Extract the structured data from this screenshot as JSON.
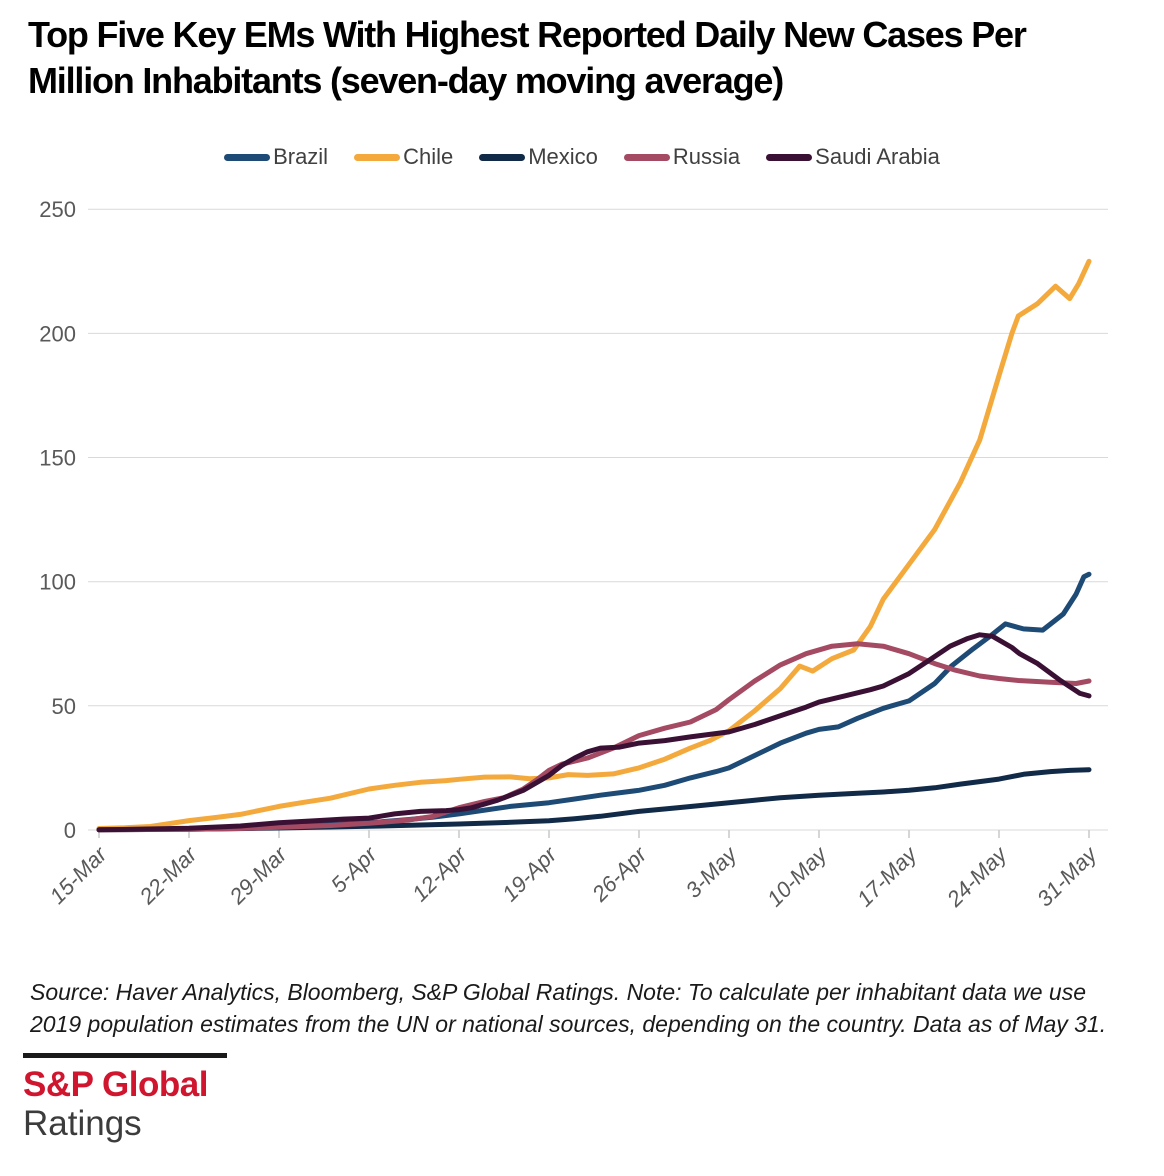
{
  "title": {
    "full": "Top Five Key EMs With Highest Reported Daily New Cases Per Million Inhabitants (seven-day moving average)",
    "line1": "Top Five Key EMs With Highest Reported Daily New Cases Per",
    "line2": "Million Inhabitants (seven-day moving average)"
  },
  "footer": {
    "line1": "Source: Haver Analytics, Bloomberg, S&P Global Ratings. Note: To calculate per inhabitant data we  use",
    "line2": "2019 population  estimates from the UN or national sources, depending on the country. Data as of May 31."
  },
  "logo": {
    "brand": "S&P Global",
    "division": "Ratings",
    "brand_color": "#d0152f"
  },
  "chart_data": {
    "type": "line",
    "title": "Top Five Key EMs With Highest Reported Daily New Cases Per Million Inhabitants (seven-day moving average)",
    "xlabel": "",
    "ylabel": "",
    "ylim": [
      0,
      250
    ],
    "yticks": [
      0,
      50,
      100,
      150,
      200,
      250
    ],
    "grid": "horizontal",
    "legend_position": "top-center",
    "x_start_date": "15-Mar",
    "x_end_date": "31-May",
    "x_tick_labels": [
      "15-Mar",
      "22-Mar",
      "29-Mar",
      "5-Apr",
      "12-Apr",
      "19-Apr",
      "26-Apr",
      "3-May",
      "10-May",
      "17-May",
      "24-May",
      "31-May"
    ],
    "x_tick_days": [
      0,
      7,
      14,
      21,
      28,
      35,
      42,
      49,
      56,
      63,
      70,
      77
    ],
    "axis_text_color": "#595959",
    "grid_color": "#d9d9d9",
    "series": [
      {
        "name": "Brazil",
        "color": "#1e4a76",
        "points": [
          [
            0,
            0.2
          ],
          [
            4,
            0.4
          ],
          [
            7,
            0.6
          ],
          [
            11,
            1
          ],
          [
            14,
            1.4
          ],
          [
            18,
            2.2
          ],
          [
            21,
            2.9
          ],
          [
            24,
            4.2
          ],
          [
            26,
            5.2
          ],
          [
            28,
            6.5
          ],
          [
            30,
            8
          ],
          [
            32,
            9.5
          ],
          [
            35,
            11
          ],
          [
            37,
            12.5
          ],
          [
            39,
            14
          ],
          [
            42,
            16
          ],
          [
            44,
            18
          ],
          [
            46,
            21
          ],
          [
            48,
            23.5
          ],
          [
            49,
            25
          ],
          [
            51,
            30
          ],
          [
            53,
            35
          ],
          [
            55,
            39
          ],
          [
            56,
            40.5
          ],
          [
            57.5,
            41.5
          ],
          [
            59,
            45
          ],
          [
            61,
            49
          ],
          [
            63,
            52
          ],
          [
            65,
            59
          ],
          [
            66.3,
            66
          ],
          [
            68,
            73
          ],
          [
            69.3,
            78
          ],
          [
            70.5,
            83
          ],
          [
            71.9,
            81
          ],
          [
            73.4,
            80.5
          ],
          [
            75,
            87
          ],
          [
            76,
            95
          ],
          [
            76.6,
            102
          ],
          [
            77,
            103
          ]
        ]
      },
      {
        "name": "Chile",
        "color": "#f4a93c",
        "points": [
          [
            0,
            0.6
          ],
          [
            2,
            0.9
          ],
          [
            4,
            1.4
          ],
          [
            7,
            3.8
          ],
          [
            9,
            5
          ],
          [
            11,
            6.3
          ],
          [
            14,
            9.5
          ],
          [
            16,
            11.2
          ],
          [
            18,
            12.8
          ],
          [
            21,
            16.5
          ],
          [
            23,
            18
          ],
          [
            25,
            19.2
          ],
          [
            27,
            19.9
          ],
          [
            28,
            20.4
          ],
          [
            30,
            21.3
          ],
          [
            32,
            21.4
          ],
          [
            33.5,
            20.6
          ],
          [
            35,
            21
          ],
          [
            36.5,
            22.3
          ],
          [
            38,
            22
          ],
          [
            40,
            22.6
          ],
          [
            42,
            25
          ],
          [
            44,
            28.5
          ],
          [
            46,
            33
          ],
          [
            47.5,
            36
          ],
          [
            49,
            40
          ],
          [
            51,
            48
          ],
          [
            53,
            57
          ],
          [
            54.5,
            66
          ],
          [
            55.5,
            64
          ],
          [
            57,
            69
          ],
          [
            58.7,
            72.5
          ],
          [
            60,
            82
          ],
          [
            61,
            93
          ],
          [
            63,
            107
          ],
          [
            65,
            121
          ],
          [
            67,
            140
          ],
          [
            68.5,
            157
          ],
          [
            70,
            183
          ],
          [
            71,
            200
          ],
          [
            71.5,
            207
          ],
          [
            73,
            212
          ],
          [
            74.4,
            219
          ],
          [
            75.5,
            214
          ],
          [
            76.2,
            220
          ],
          [
            77,
            229
          ]
        ]
      },
      {
        "name": "Mexico",
        "color": "#112a47",
        "points": [
          [
            0,
            0.1
          ],
          [
            7,
            0.3
          ],
          [
            14,
            0.8
          ],
          [
            18,
            1.2
          ],
          [
            21,
            1.5
          ],
          [
            25,
            2
          ],
          [
            28,
            2.4
          ],
          [
            31,
            2.9
          ],
          [
            33,
            3.3
          ],
          [
            35,
            3.7
          ],
          [
            37,
            4.5
          ],
          [
            39,
            5.5
          ],
          [
            42,
            7.5
          ],
          [
            45,
            9
          ],
          [
            47,
            10
          ],
          [
            49,
            11
          ],
          [
            51,
            12
          ],
          [
            53,
            13
          ],
          [
            56,
            14
          ],
          [
            59,
            14.8
          ],
          [
            61,
            15.3
          ],
          [
            63,
            16
          ],
          [
            65,
            17
          ],
          [
            67,
            18.5
          ],
          [
            68.5,
            19.5
          ],
          [
            70,
            20.5
          ],
          [
            72,
            22.5
          ],
          [
            74,
            23.5
          ],
          [
            75.5,
            24
          ],
          [
            77,
            24.3
          ]
        ]
      },
      {
        "name": "Russia",
        "color": "#a54a63",
        "points": [
          [
            0,
            0.1
          ],
          [
            7,
            0.3
          ],
          [
            11,
            0.6
          ],
          [
            14,
            1.1
          ],
          [
            18,
            1.8
          ],
          [
            21,
            2.7
          ],
          [
            24,
            4
          ],
          [
            26,
            5.5
          ],
          [
            28,
            9
          ],
          [
            30,
            11.5
          ],
          [
            31.5,
            13
          ],
          [
            33,
            16.5
          ],
          [
            34,
            20
          ],
          [
            35,
            24
          ],
          [
            36,
            26.5
          ],
          [
            38,
            29
          ],
          [
            40,
            33
          ],
          [
            42,
            38
          ],
          [
            44,
            41
          ],
          [
            46,
            43.5
          ],
          [
            48,
            48.5
          ],
          [
            49,
            52.5
          ],
          [
            51,
            60
          ],
          [
            53,
            66.5
          ],
          [
            55,
            71
          ],
          [
            57,
            74
          ],
          [
            59,
            75
          ],
          [
            61,
            74
          ],
          [
            63,
            71
          ],
          [
            65,
            67
          ],
          [
            66.5,
            64.5
          ],
          [
            68.5,
            62
          ],
          [
            70,
            61
          ],
          [
            71.5,
            60.2
          ],
          [
            74,
            59.5
          ],
          [
            76,
            59
          ],
          [
            77,
            60
          ]
        ]
      },
      {
        "name": "Saudi Arabia",
        "color": "#3a1135",
        "points": [
          [
            0,
            0.1
          ],
          [
            7,
            0.7
          ],
          [
            11,
            1.6
          ],
          [
            14,
            2.9
          ],
          [
            17,
            3.8
          ],
          [
            19,
            4.4
          ],
          [
            21,
            4.8
          ],
          [
            23,
            6.5
          ],
          [
            25,
            7.5
          ],
          [
            27,
            7.8
          ],
          [
            28,
            8.2
          ],
          [
            29,
            9
          ],
          [
            31,
            12
          ],
          [
            33,
            16
          ],
          [
            35,
            22
          ],
          [
            36,
            26
          ],
          [
            37,
            29
          ],
          [
            38,
            31.5
          ],
          [
            39,
            33
          ],
          [
            40.5,
            33.4
          ],
          [
            42,
            35
          ],
          [
            44,
            36
          ],
          [
            46,
            37.5
          ],
          [
            49,
            39.5
          ],
          [
            51,
            42.5
          ],
          [
            53,
            46
          ],
          [
            55,
            49.5
          ],
          [
            56,
            51.5
          ],
          [
            58,
            54
          ],
          [
            60,
            56.5
          ],
          [
            61,
            58
          ],
          [
            63,
            63
          ],
          [
            64.6,
            68.5
          ],
          [
            66.2,
            74
          ],
          [
            67.5,
            77
          ],
          [
            68.5,
            78.6
          ],
          [
            69.5,
            78
          ],
          [
            71,
            73.5
          ],
          [
            71.6,
            71
          ],
          [
            73,
            67
          ],
          [
            74.7,
            60.5
          ],
          [
            76.3,
            55
          ],
          [
            77,
            54
          ]
        ]
      }
    ]
  }
}
